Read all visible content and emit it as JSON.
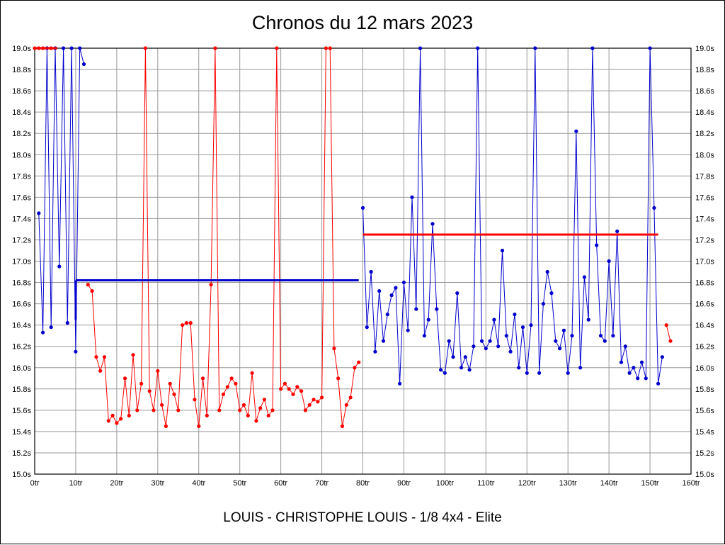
{
  "chart_data": {
    "type": "line",
    "title": "Chronos du 12 mars 2023",
    "caption": "LOUIS - CHRISTOPHE LOUIS - 1/8 4x4 - Elite",
    "x_unit": "tr",
    "y_unit": "s",
    "xlim": [
      0,
      160
    ],
    "ylim": [
      15.0,
      19.0
    ],
    "grid": true,
    "x_ticks": [
      "0tr",
      "10tr",
      "20tr",
      "30tr",
      "40tr",
      "50tr",
      "60tr",
      "70tr",
      "80tr",
      "90tr",
      "100tr",
      "110tr",
      "120tr",
      "130tr",
      "140tr",
      "150tr",
      "160tr"
    ],
    "y_ticks": [
      "19.0s",
      "18.8s",
      "18.6s",
      "18.4s",
      "18.2s",
      "18.0s",
      "17.8s",
      "17.6s",
      "17.4s",
      "17.2s",
      "17.0s",
      "16.8s",
      "16.6s",
      "16.4s",
      "16.2s",
      "16.0s",
      "15.8s",
      "15.6s",
      "15.4s",
      "15.2s",
      "15.0s"
    ],
    "colors": {
      "grid": "#999999",
      "axis": "#000000",
      "red": "#ff0000",
      "blue": "#0000cc"
    },
    "series": [
      {
        "name": "run-red",
        "color": "#ff0000",
        "segments": [
          [
            [
              0,
              19.0
            ],
            [
              1,
              19.0
            ],
            [
              2,
              19.0
            ],
            [
              3,
              19.0
            ],
            [
              4,
              19.0
            ],
            [
              5,
              19.0
            ]
          ],
          [
            [
              13,
              16.78
            ],
            [
              14,
              16.72
            ],
            [
              15,
              16.1
            ],
            [
              16,
              15.97
            ],
            [
              17,
              16.1
            ],
            [
              18,
              15.5
            ],
            [
              19,
              15.55
            ],
            [
              20,
              15.48
            ],
            [
              21,
              15.52
            ],
            [
              22,
              15.9
            ],
            [
              23,
              15.55
            ],
            [
              24,
              16.12
            ],
            [
              25,
              15.6
            ],
            [
              26,
              15.85
            ],
            [
              27,
              19.0
            ],
            [
              28,
              15.78
            ],
            [
              29,
              15.6
            ],
            [
              30,
              15.97
            ],
            [
              31,
              15.65
            ],
            [
              32,
              15.45
            ],
            [
              33,
              15.85
            ],
            [
              34,
              15.75
            ],
            [
              35,
              15.6
            ],
            [
              36,
              16.4
            ],
            [
              37,
              16.42
            ],
            [
              38,
              16.42
            ],
            [
              39,
              15.7
            ],
            [
              40,
              15.45
            ],
            [
              41,
              15.9
            ],
            [
              42,
              15.55
            ],
            [
              43,
              16.78
            ],
            [
              44,
              19.0
            ],
            [
              45,
              15.6
            ],
            [
              46,
              15.75
            ],
            [
              47,
              15.82
            ],
            [
              48,
              15.9
            ],
            [
              49,
              15.85
            ],
            [
              50,
              15.6
            ],
            [
              51,
              15.65
            ],
            [
              52,
              15.55
            ],
            [
              53,
              15.95
            ],
            [
              54,
              15.5
            ],
            [
              55,
              15.62
            ],
            [
              56,
              15.7
            ],
            [
              57,
              15.55
            ],
            [
              58,
              15.6
            ],
            [
              59,
              19.0
            ],
            [
              60,
              15.8
            ],
            [
              61,
              15.85
            ],
            [
              62,
              15.8
            ],
            [
              63,
              15.75
            ],
            [
              64,
              15.82
            ],
            [
              65,
              15.78
            ],
            [
              66,
              15.6
            ],
            [
              67,
              15.65
            ],
            [
              68,
              15.7
            ],
            [
              69,
              15.68
            ],
            [
              70,
              15.72
            ],
            [
              71,
              19.0
            ],
            [
              72,
              19.0
            ],
            [
              73,
              16.18
            ],
            [
              74,
              15.9
            ],
            [
              75,
              15.45
            ],
            [
              76,
              15.65
            ],
            [
              77,
              15.72
            ],
            [
              78,
              16.0
            ],
            [
              79,
              16.05
            ]
          ],
          [
            [
              154,
              16.4
            ],
            [
              155,
              16.25
            ]
          ]
        ]
      },
      {
        "name": "run-blue",
        "color": "#0000cc",
        "segments": [
          [
            [
              1,
              17.45
            ],
            [
              2,
              16.33
            ],
            [
              3,
              19.0
            ],
            [
              4,
              16.38
            ],
            [
              5,
              19.0
            ],
            [
              6,
              16.95
            ],
            [
              7,
              19.0
            ],
            [
              8,
              16.42
            ],
            [
              9,
              19.0
            ],
            [
              10,
              16.15
            ],
            [
              11,
              19.0
            ],
            [
              12,
              18.85
            ]
          ],
          [
            [
              80,
              17.5
            ],
            [
              81,
              16.38
            ],
            [
              82,
              16.9
            ],
            [
              83,
              16.15
            ],
            [
              84,
              16.72
            ],
            [
              85,
              16.25
            ],
            [
              86,
              16.5
            ],
            [
              87,
              16.68
            ],
            [
              88,
              16.75
            ],
            [
              89,
              15.85
            ],
            [
              90,
              16.8
            ],
            [
              91,
              16.35
            ],
            [
              92,
              17.6
            ],
            [
              93,
              16.55
            ],
            [
              94,
              19.0
            ],
            [
              95,
              16.3
            ],
            [
              96,
              16.45
            ],
            [
              97,
              17.35
            ],
            [
              98,
              16.55
            ],
            [
              99,
              15.98
            ],
            [
              100,
              15.95
            ],
            [
              101,
              16.25
            ],
            [
              102,
              16.1
            ],
            [
              103,
              16.7
            ],
            [
              104,
              16.0
            ],
            [
              105,
              16.1
            ],
            [
              106,
              15.98
            ],
            [
              107,
              16.2
            ],
            [
              108,
              19.0
            ],
            [
              109,
              16.25
            ],
            [
              110,
              16.18
            ],
            [
              111,
              16.25
            ],
            [
              112,
              16.45
            ],
            [
              113,
              16.2
            ],
            [
              114,
              17.1
            ],
            [
              115,
              16.3
            ],
            [
              116,
              16.15
            ],
            [
              117,
              16.5
            ],
            [
              118,
              16.0
            ],
            [
              119,
              16.38
            ],
            [
              120,
              15.95
            ],
            [
              121,
              16.4
            ],
            [
              122,
              19.0
            ],
            [
              123,
              15.95
            ],
            [
              124,
              16.6
            ],
            [
              125,
              16.9
            ],
            [
              126,
              16.7
            ],
            [
              127,
              16.25
            ],
            [
              128,
              16.18
            ],
            [
              129,
              16.35
            ],
            [
              130,
              15.95
            ],
            [
              131,
              16.3
            ],
            [
              132,
              18.22
            ],
            [
              133,
              16.0
            ],
            [
              134,
              16.85
            ],
            [
              135,
              16.45
            ],
            [
              136,
              19.0
            ],
            [
              137,
              17.15
            ],
            [
              138,
              16.3
            ],
            [
              139,
              16.25
            ],
            [
              140,
              17.0
            ],
            [
              141,
              16.3
            ],
            [
              142,
              17.28
            ],
            [
              143,
              16.05
            ],
            [
              144,
              16.2
            ],
            [
              145,
              15.95
            ],
            [
              146,
              16.0
            ],
            [
              147,
              15.9
            ],
            [
              148,
              16.05
            ],
            [
              149,
              15.9
            ],
            [
              150,
              19.0
            ],
            [
              151,
              17.5
            ],
            [
              152,
              15.85
            ],
            [
              153,
              16.1
            ]
          ]
        ]
      }
    ],
    "reference_lines": [
      {
        "name": "red-opening-line",
        "color": "#ff0000",
        "y": 19.0,
        "x_start": 0,
        "x_end": 5.5
      },
      {
        "name": "blue-average-line",
        "color": "#0000cc",
        "y": 16.82,
        "x_start": 10,
        "x_end": 79,
        "start_drop_y": 16.45
      },
      {
        "name": "red-average-line",
        "color": "#ff0000",
        "y": 17.25,
        "x_start": 80,
        "x_end": 152
      }
    ]
  }
}
